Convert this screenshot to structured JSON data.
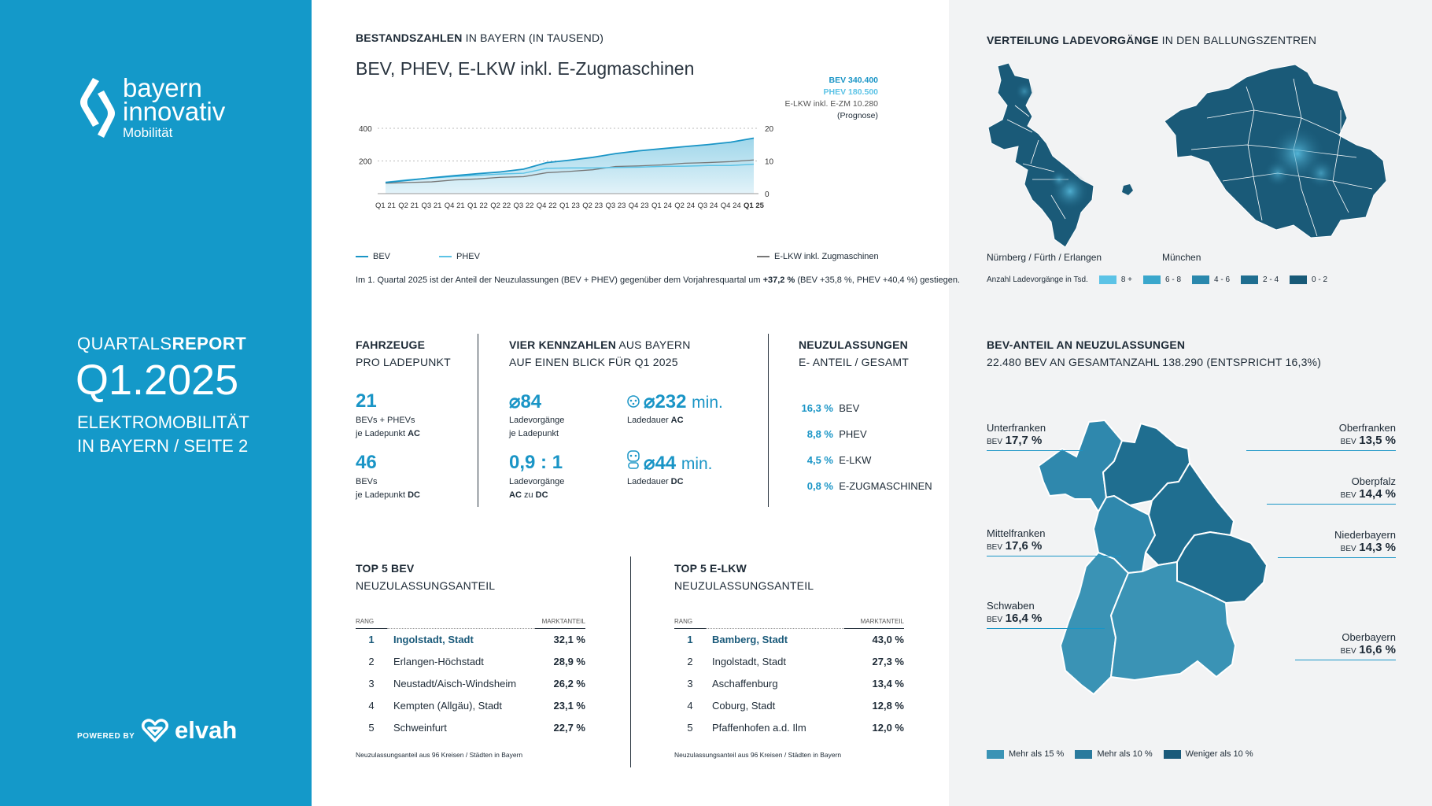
{
  "sidebar": {
    "brand1": "bayern",
    "brand2": "innovativ",
    "brand3": "Mobilität",
    "report_pre": "QUARTALS",
    "report_bold": "REPORT",
    "quarter": "Q1.2025",
    "sub1": "ELEKTROMOBILITÄT",
    "sub2": "IN BAYERN / SEITE 2",
    "powered": "POWERED BY",
    "partner": "elvah"
  },
  "colors": {
    "accent": "#1499c9",
    "dark": "#1a4f6e",
    "line_bev": "#1a95c6",
    "line_phev": "#5cc3e6",
    "line_elkw": "#777777"
  },
  "stock": {
    "heading_bold": "BESTANDSZAHLEN",
    "heading_rest": " IN BAYERN (IN TAUSEND)",
    "subtitle": "BEV, PHEV, E-LKW inkl. E-Zugmaschinen",
    "ann_bev": "BEV 340.400",
    "ann_phev": "PHEV 180.500",
    "ann_elkw": "E-LKW inkl. E-ZM 10.280",
    "ann_prog": "(Prognose)",
    "legend_bev": "BEV",
    "legend_phev": "PHEV",
    "legend_elkw": "E-LKW inkl. Zugmaschinen",
    "note_pre": "Im 1. Quartal 2025 ist der Anteil der Neuzulassungen (BEV + PHEV) gegenüber dem Vorjahresquartal um ",
    "note_bold": "+37,2 %",
    "note_post": " (BEV +35,8 %, PHEV +40,4 %)  gestiegen."
  },
  "chart_data": {
    "type": "area",
    "title": "BEV, PHEV, E-LKW inkl. E-Zugmaschinen",
    "categories": [
      "Q1 21",
      "Q2 21",
      "Q3 21",
      "Q4 21",
      "Q1 22",
      "Q2 22",
      "Q3 22",
      "Q4 22",
      "Q1 23",
      "Q2 23",
      "Q3 23",
      "Q4 23",
      "Q1 24",
      "Q2 24",
      "Q3 24",
      "Q4 24",
      "Q1 25"
    ],
    "y_left": {
      "range": [
        0,
        400
      ],
      "ticks": [
        "400",
        "200"
      ]
    },
    "y_right": {
      "range": [
        0,
        20
      ],
      "ticks": [
        "20",
        "10",
        "0"
      ]
    },
    "series": [
      {
        "name": "BEV",
        "axis": "left",
        "values": [
          68,
          82,
          97,
          110,
          122,
          133,
          150,
          190,
          205,
          222,
          245,
          262,
          275,
          288,
          300,
          315,
          340
        ]
      },
      {
        "name": "PHEV",
        "axis": "left",
        "values": [
          70,
          85,
          96,
          105,
          112,
          120,
          125,
          155,
          157,
          157,
          160,
          162,
          167,
          168,
          172,
          172,
          180
        ]
      },
      {
        "name": "E-LKW inkl. Zugmaschinen",
        "axis": "right",
        "values": [
          3.2,
          3.4,
          3.6,
          4.2,
          4.5,
          5.0,
          5.2,
          6.4,
          6.8,
          7.3,
          8.3,
          8.5,
          8.8,
          9.3,
          9.5,
          9.8,
          10.3
        ]
      }
    ]
  },
  "fahrzeuge": {
    "h1": "FAHRZEUGE",
    "h2": "PRO LADEPUNKT",
    "v1": "21",
    "l1a": "BEVs  + PHEVs",
    "l1b": "je Ladepunkt ",
    "l1c": "AC",
    "v2": "46",
    "l2a": "BEVs",
    "l2b": "je Ladepunkt ",
    "l2c": "DC"
  },
  "kennzahlen": {
    "h1_bold": "VIER KENNZAHLEN",
    "h1_rest": " AUS BAYERN",
    "h2": "AUF EINEN BLICK FÜR Q1 2025",
    "k1": "⌀84",
    "k1a": "Ladevorgänge",
    "k1b": "je Ladepunkt",
    "k2": "⌀232",
    "k2u": "min.",
    "k2a": "Ladedauer ",
    "k2b": "AC",
    "k3": "0,9 : 1",
    "k3a": "Ladevorgänge",
    "k3b": "AC",
    "k3c": " zu ",
    "k3d": "DC",
    "k4": "⌀44",
    "k4u": "min.",
    "k4a": "Ladedauer ",
    "k4b": "DC"
  },
  "neuzul": {
    "h1": "NEUZULASSUNGEN",
    "h2": "E- ANTEIL / GESAMT",
    "rows": [
      {
        "v": "16,3 %",
        "l": "BEV"
      },
      {
        "v": "8,8 %",
        "l": "PHEV"
      },
      {
        "v": "4,5 %",
        "l": "E-LKW"
      },
      {
        "v": "0,8 %",
        "l": "E-ZUGMASCHINEN"
      }
    ]
  },
  "top_bev": {
    "h1": "TOP 5 BEV",
    "h2": "NEUZULASSUNGSANTEIL",
    "rang": "RANG",
    "markt": "MARKTANTEIL",
    "rows": [
      {
        "r": "1",
        "n": "Ingolstadt, Stadt",
        "p": "32,1 %"
      },
      {
        "r": "2",
        "n": "Erlangen-Höchstadt",
        "p": "28,9 %"
      },
      {
        "r": "3",
        "n": "Neustadt/Aisch-Windsheim",
        "p": "26,2 %"
      },
      {
        "r": "4",
        "n": "Kempten (Allgäu), Stadt",
        "p": "23,1 %"
      },
      {
        "r": "5",
        "n": "Schweinfurt",
        "p": "22,7 %"
      }
    ],
    "foot": "Neuzulassungsanteil aus 96 Kreisen / Städten in Bayern"
  },
  "top_elkw": {
    "h1": "TOP 5 E-LKW",
    "h2": "NEUZULASSUNGSANTEIL",
    "rang": "RANG",
    "markt": "MARKTANTEIL",
    "rows": [
      {
        "r": "1",
        "n": "Bamberg, Stadt",
        "p": "43,0 %"
      },
      {
        "r": "2",
        "n": "Ingolstadt, Stadt",
        "p": "27,3 %"
      },
      {
        "r": "3",
        "n": "Aschaffenburg",
        "p": "13,4 %"
      },
      {
        "r": "4",
        "n": "Coburg, Stadt",
        "p": "12,8 %"
      },
      {
        "r": "5",
        "n": "Pfaffenhofen a.d. Ilm",
        "p": "12,0 %"
      }
    ],
    "foot": "Neuzulassungsanteil aus 96 Kreisen / Städten in Bayern"
  },
  "verteilung": {
    "heading_bold": "VERTEILUNG LADEVORGÄNGE",
    "heading_rest": " IN DEN BALLUNGSZENTREN",
    "map1": "Nürnberg / Fürth / Erlangen",
    "map2": "München",
    "legend_title": "Anzahl Ladevorgänge in Tsd.",
    "legend": [
      {
        "l": "8 +",
        "c": "#5cc3e6"
      },
      {
        "l": "6 - 8",
        "c": "#3aa7cc"
      },
      {
        "l": "4 - 6",
        "c": "#2a88ad"
      },
      {
        "l": "2 - 4",
        "c": "#1f6e90"
      },
      {
        "l": "0 - 2",
        "c": "#185a78"
      }
    ]
  },
  "bevanteil": {
    "h1": "BEV-ANTEIL AN NEUZULASSUNGEN",
    "h2": "22.480 BEV AN GESAMTANZAHL 138.290 (ENTSPRICHT 16,3%)",
    "bev": "BEV",
    "regions": {
      "unterfranken": {
        "n": "Unterfranken",
        "v": "17,7 %"
      },
      "oberfranken": {
        "n": "Oberfranken",
        "v": "13,5 %"
      },
      "oberpfalz": {
        "n": "Oberpfalz",
        "v": "14,4 %"
      },
      "mittelfranken": {
        "n": "Mittelfranken",
        "v": "17,6 %"
      },
      "niederbayern": {
        "n": "Niederbayern",
        "v": "14,3 %"
      },
      "schwaben": {
        "n": "Schwaben",
        "v": "16,4 %"
      },
      "oberbayern": {
        "n": "Oberbayern",
        "v": "16,6 %"
      }
    },
    "legend": [
      {
        "l": "Mehr als 15 %",
        "c": "#3a93b5"
      },
      {
        "l": "Mehr als 10 %",
        "c": "#2a7a9d"
      },
      {
        "l": "Weniger als 10 %",
        "c": "#1a5a7a"
      }
    ]
  }
}
